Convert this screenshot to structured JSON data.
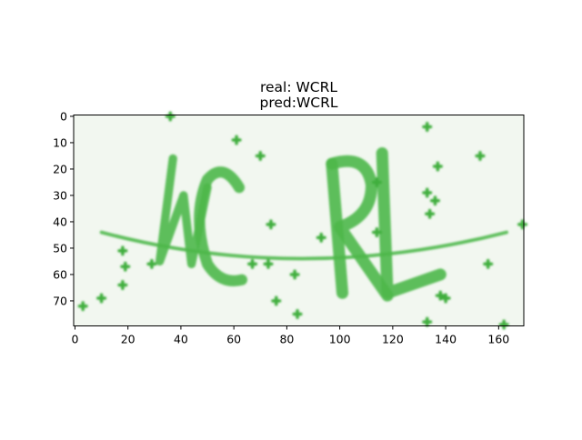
{
  "chart_data": {
    "type": "image",
    "title_lines": [
      "real: WCRL",
      "pred:WCRL"
    ],
    "xlim": [
      -0.5,
      169.5
    ],
    "ylim": [
      79.5,
      -0.5
    ],
    "xticks": [
      0,
      20,
      40,
      60,
      80,
      100,
      120,
      140,
      160
    ],
    "yticks": [
      0,
      10,
      20,
      30,
      40,
      50,
      60,
      70
    ]
  }
}
